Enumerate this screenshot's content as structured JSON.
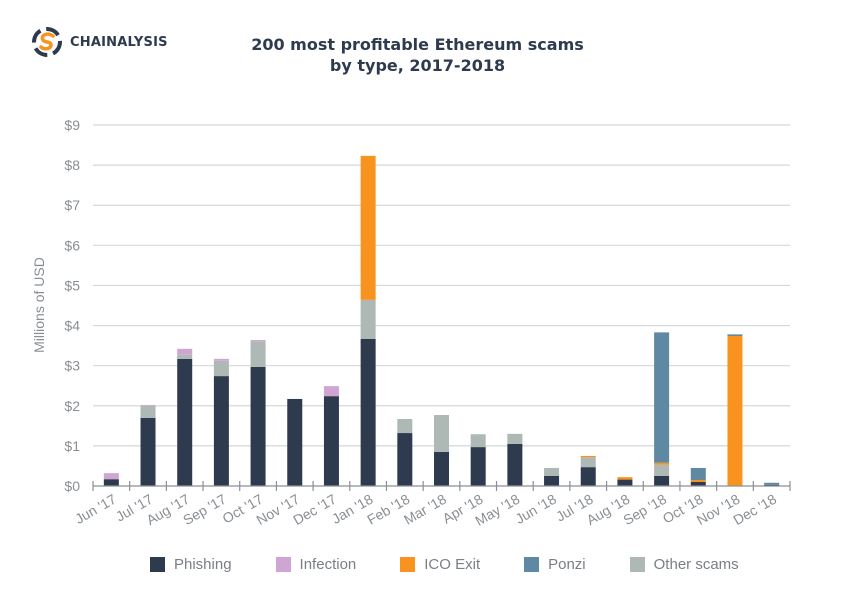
{
  "brand": {
    "name": "CHAINALYSIS",
    "logo_icon": "chainalysis-logo-icon",
    "colors": {
      "dark": "#2e3b4e",
      "orange": "#f7931e"
    }
  },
  "chart_data": {
    "type": "bar",
    "stacked": true,
    "title_lines": [
      "200 most profitable Ethereum scams",
      "by type, 2017-2018"
    ],
    "xlabel": "",
    "ylabel": "Millions of USD",
    "ylim": [
      0,
      9
    ],
    "yticks": [
      0,
      1,
      2,
      3,
      4,
      5,
      6,
      7,
      8,
      9
    ],
    "ytick_labels": [
      "$0",
      "$1",
      "$2",
      "$3",
      "$4",
      "$5",
      "$6",
      "$7",
      "$8",
      "$9"
    ],
    "grid": true,
    "legend_position": "bottom",
    "categories": [
      "Jun '17",
      "Jul '17",
      "Aug '17",
      "Sep '17",
      "Oct '17",
      "Nov '17",
      "Dec '17",
      "Jan '18",
      "Feb '18",
      "Mar '18",
      "Apr '18",
      "May '18",
      "Jun '18",
      "Jul '18",
      "Aug '18",
      "Sep '18",
      "Oct '18",
      "Nov '18",
      "Dec '18"
    ],
    "series": [
      {
        "name": "Phishing",
        "color": "#2e3b4e",
        "values": [
          0.17,
          1.7,
          3.17,
          2.74,
          2.97,
          2.17,
          2.24,
          3.67,
          1.32,
          0.85,
          0.97,
          1.05,
          0.25,
          0.47,
          0.16,
          0.25,
          0.1,
          0.0,
          0.03
        ]
      },
      {
        "name": "Other scams",
        "color": "#aeb8b5",
        "values": [
          0.0,
          0.3,
          0.1,
          0.38,
          0.64,
          0.0,
          0.0,
          0.97,
          0.35,
          0.92,
          0.32,
          0.25,
          0.2,
          0.25,
          0.0,
          0.28,
          0.0,
          0.0,
          0.0
        ]
      },
      {
        "name": "Infection",
        "color": "#cfa6d2",
        "values": [
          0.15,
          0.02,
          0.15,
          0.05,
          0.03,
          0.0,
          0.25,
          0.0,
          0.0,
          0.0,
          0.0,
          0.0,
          0.0,
          0.0,
          0.0,
          0.0,
          0.0,
          0.0,
          0.0
        ]
      },
      {
        "name": "ICO Exit",
        "color": "#f7931e",
        "values": [
          0.0,
          0.0,
          0.0,
          0.0,
          0.0,
          0.0,
          0.0,
          3.59,
          0.0,
          0.0,
          0.0,
          0.0,
          0.0,
          0.03,
          0.06,
          0.05,
          0.05,
          3.74,
          0.0
        ]
      },
      {
        "name": "Ponzi",
        "color": "#5f88a3",
        "values": [
          0.0,
          0.0,
          0.0,
          0.0,
          0.0,
          0.0,
          0.0,
          0.0,
          0.0,
          0.0,
          0.0,
          0.0,
          0.0,
          0.0,
          0.0,
          3.25,
          0.3,
          0.04,
          0.05
        ]
      }
    ]
  },
  "legend": [
    {
      "label": "Phishing",
      "color": "#2e3b4e"
    },
    {
      "label": "Infection",
      "color": "#cfa6d2"
    },
    {
      "label": "ICO Exit",
      "color": "#f7931e"
    },
    {
      "label": "Ponzi",
      "color": "#5f88a3"
    },
    {
      "label": "Other scams",
      "color": "#aeb8b5"
    }
  ]
}
